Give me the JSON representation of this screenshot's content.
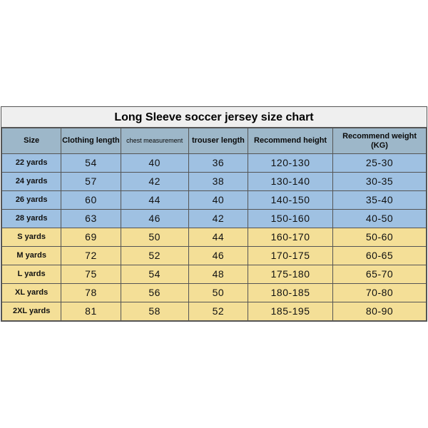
{
  "title": "Long Sleeve soccer jersey size chart",
  "columns": [
    "Size",
    "Clothing length",
    "chest measurement",
    "trouser length",
    "Recommend height",
    "Recommend weight (KG)"
  ],
  "column_widths_percent": [
    14,
    14,
    16,
    14,
    20,
    22
  ],
  "header_bg": "#9db7c9",
  "row_blue_bg": "#9fc1e2",
  "row_yellow_bg": "#f4df97",
  "border_color": "#555555",
  "title_bg": "#efefef",
  "title_fontsize": 16,
  "header_fontsize": 11,
  "small_header_fontsize": 9,
  "size_fontsize": 11,
  "value_fontsize": 14,
  "rows": [
    {
      "style": "blue",
      "cells": [
        "22 yards",
        "54",
        "40",
        "36",
        "120-130",
        "25-30"
      ]
    },
    {
      "style": "blue",
      "cells": [
        "24 yards",
        "57",
        "42",
        "38",
        "130-140",
        "30-35"
      ]
    },
    {
      "style": "blue",
      "cells": [
        "26 yards",
        "60",
        "44",
        "40",
        "140-150",
        "35-40"
      ]
    },
    {
      "style": "blue",
      "cells": [
        "28 yards",
        "63",
        "46",
        "42",
        "150-160",
        "40-50"
      ]
    },
    {
      "style": "yellow",
      "cells": [
        "S yards",
        "69",
        "50",
        "44",
        "160-170",
        "50-60"
      ]
    },
    {
      "style": "yellow",
      "cells": [
        "M yards",
        "72",
        "52",
        "46",
        "170-175",
        "60-65"
      ]
    },
    {
      "style": "yellow",
      "cells": [
        "L yards",
        "75",
        "54",
        "48",
        "175-180",
        "65-70"
      ]
    },
    {
      "style": "yellow",
      "cells": [
        "XL yards",
        "78",
        "56",
        "50",
        "180-185",
        "70-80"
      ]
    },
    {
      "style": "yellow",
      "cells": [
        "2XL yards",
        "81",
        "58",
        "52",
        "185-195",
        "80-90"
      ]
    }
  ]
}
